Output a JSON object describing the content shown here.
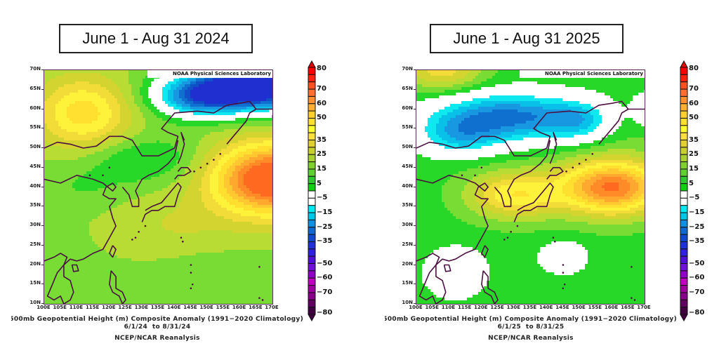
{
  "panels": [
    {
      "title": "June 1 - Aug 31 2024",
      "credit": "NOAA Physical Sciences Laboratory",
      "caption_line1": "500mb Geopotential Height (m) Composite Anomaly (1991-2020 Climatology)",
      "caption_line1_visible": "500mb Geopotential Height (m) Composite Anomaly (1991−2020 Climatology)",
      "caption_line2": "6/1/24  to 8/31/24",
      "caption_line3": "NCEP/NCAR Reanalysis"
    },
    {
      "title": "June 1 - Aug 31 2025",
      "credit": "NOAA Physical Sciences Laboratory",
      "caption_line1": "500mb Geopotential Height (m) Composite Anomaly (1991-2020 Climatology)",
      "caption_line1_visible": "500mb Geopotential Height (m) Composite Anomaly (1991−2020 Climatology)",
      "caption_line2": "6/1/25  to 8/31/25",
      "caption_line3": "NCEP/NCAR Reanalysis"
    }
  ],
  "chart_data": [
    {
      "type": "heatmap",
      "title": "June 1 - Aug 31 2024",
      "variable": "500mb Geopotential Height (m) Composite Anomaly",
      "units": "m",
      "x_ticks": [
        "100E",
        "105E",
        "110E",
        "115E",
        "120E",
        "125E",
        "130E",
        "135E",
        "140E",
        "145E",
        "150E",
        "155E",
        "160E",
        "165E",
        "170E"
      ],
      "y_ticks": [
        "70N",
        "65N",
        "60N",
        "55N",
        "50N",
        "45N",
        "40N",
        "35N",
        "30N",
        "25N",
        "20N",
        "15N",
        "10N"
      ],
      "xlim": [
        100,
        170
      ],
      "ylim": [
        10,
        70
      ],
      "features": [
        {
          "name": "negative anomaly (Okhotsk / Bering)",
          "center_lon": 165,
          "center_lat": 63,
          "value": -30
        },
        {
          "name": "positive anomaly NW Pacific",
          "center_lon": 167,
          "center_lat": 42,
          "value": 55
        },
        {
          "name": "positive anomaly Siberia",
          "center_lon": 110,
          "center_lat": 58,
          "value": 35
        }
      ]
    },
    {
      "type": "heatmap",
      "title": "June 1 - Aug 31 2025",
      "variable": "500mb Geopotential Height (m) Composite Anomaly",
      "units": "m",
      "x_ticks": [
        "100E",
        "105E",
        "110E",
        "115E",
        "120E",
        "125E",
        "130E",
        "135E",
        "140E",
        "145E",
        "150E",
        "155E",
        "160E",
        "165E",
        "170E"
      ],
      "y_ticks": [
        "70N",
        "65N",
        "60N",
        "55N",
        "50N",
        "45N",
        "40N",
        "35N",
        "30N",
        "25N",
        "20N",
        "15N",
        "10N"
      ],
      "xlim": [
        100,
        170
      ],
      "ylim": [
        10,
        70
      ],
      "features": [
        {
          "name": "negative anomaly (Sea of Okhotsk / E Siberia)",
          "center_lon": 128,
          "center_lat": 59,
          "value": -20
        },
        {
          "name": "positive anomaly NW Pacific",
          "center_lon": 160,
          "center_lat": 40,
          "value": 55
        },
        {
          "name": "near-zero area South China Sea",
          "center_lon": 112,
          "center_lat": 18,
          "value": 0
        },
        {
          "name": "near-zero area W Pacific",
          "center_lon": 145,
          "center_lat": 22,
          "value": 0
        }
      ]
    }
  ],
  "colorbar": {
    "labels": [
      "80",
      "70",
      "60",
      "50",
      "35",
      "25",
      "15",
      "5",
      "−5",
      "−15",
      "−25",
      "−35",
      "−50",
      "−60",
      "−70",
      "−80"
    ],
    "colors": [
      "#ff0000",
      "#ff2010",
      "#ff5020",
      "#ff7030",
      "#ff9030",
      "#ffb030",
      "#ffd030",
      "#ffe030",
      "#ffff30",
      "#ffe040",
      "#e0d030",
      "#c8d030",
      "#a8d030",
      "#80d030",
      "#60d030",
      "#30c830",
      "#10d010",
      "#ffffff",
      "#ffffff",
      "#00e8f0",
      "#00c8e8",
      "#1090e0",
      "#1068d0",
      "#1048d0",
      "#2030d8",
      "#3020e0",
      "#5010d8",
      "#7010d8",
      "#9000c8",
      "#c000c0",
      "#a000a0",
      "#880088",
      "#600060",
      "#400040"
    ],
    "top_arrow_color": "#e00000",
    "bottom_arrow_color": "#400040"
  }
}
